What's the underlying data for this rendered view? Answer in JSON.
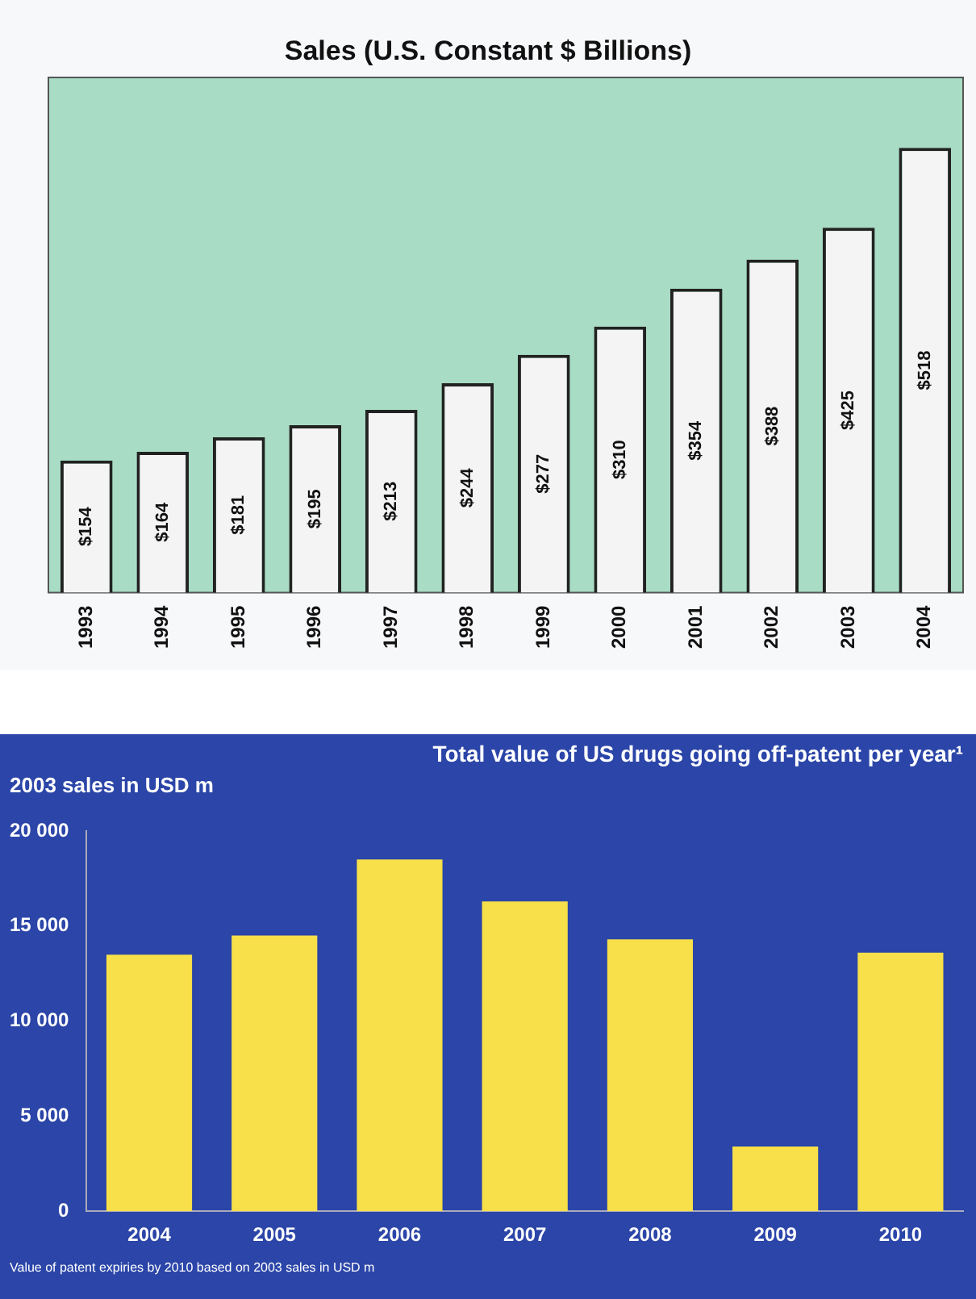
{
  "chart_data": [
    {
      "type": "bar",
      "title": "Sales (U.S. Constant $ Billions)",
      "categories": [
        "1993",
        "1994",
        "1995",
        "1996",
        "1997",
        "1998",
        "1999",
        "2000",
        "2001",
        "2002",
        "2003",
        "2004"
      ],
      "values": [
        154,
        164,
        181,
        195,
        213,
        244,
        277,
        310,
        354,
        388,
        425,
        518
      ],
      "value_labels": [
        "$154",
        "$164",
        "$181",
        "$195",
        "$213",
        "$244",
        "$277",
        "$310",
        "$354",
        "$388",
        "$425",
        "$518"
      ],
      "color": "#f4f4f4",
      "tick_labels": "x",
      "grid": false,
      "legend": false
    },
    {
      "type": "bar",
      "title": "Total value of US drugs going off-patent per year¹",
      "ylabel": "2003 sales in USD m",
      "categories": [
        "2004",
        "2005",
        "2006",
        "2007",
        "2008",
        "2009",
        "2010"
      ],
      "values": [
        13500,
        14500,
        18500,
        16300,
        14300,
        3400,
        13600
      ],
      "color": "#f7e04a",
      "ylim": [
        0,
        20000
      ],
      "yticks": [
        {
          "value": 0,
          "label": "0"
        },
        {
          "value": 5000,
          "label": "5 000"
        },
        {
          "value": 10000,
          "label": "10 000"
        },
        {
          "value": 15000,
          "label": "15 000"
        },
        {
          "value": 20000,
          "label": "20 000"
        }
      ],
      "grid": false,
      "legend": false,
      "annotations": [
        "Value of patent expiries by 2010 based on 2003 sales in USD m"
      ]
    }
  ]
}
